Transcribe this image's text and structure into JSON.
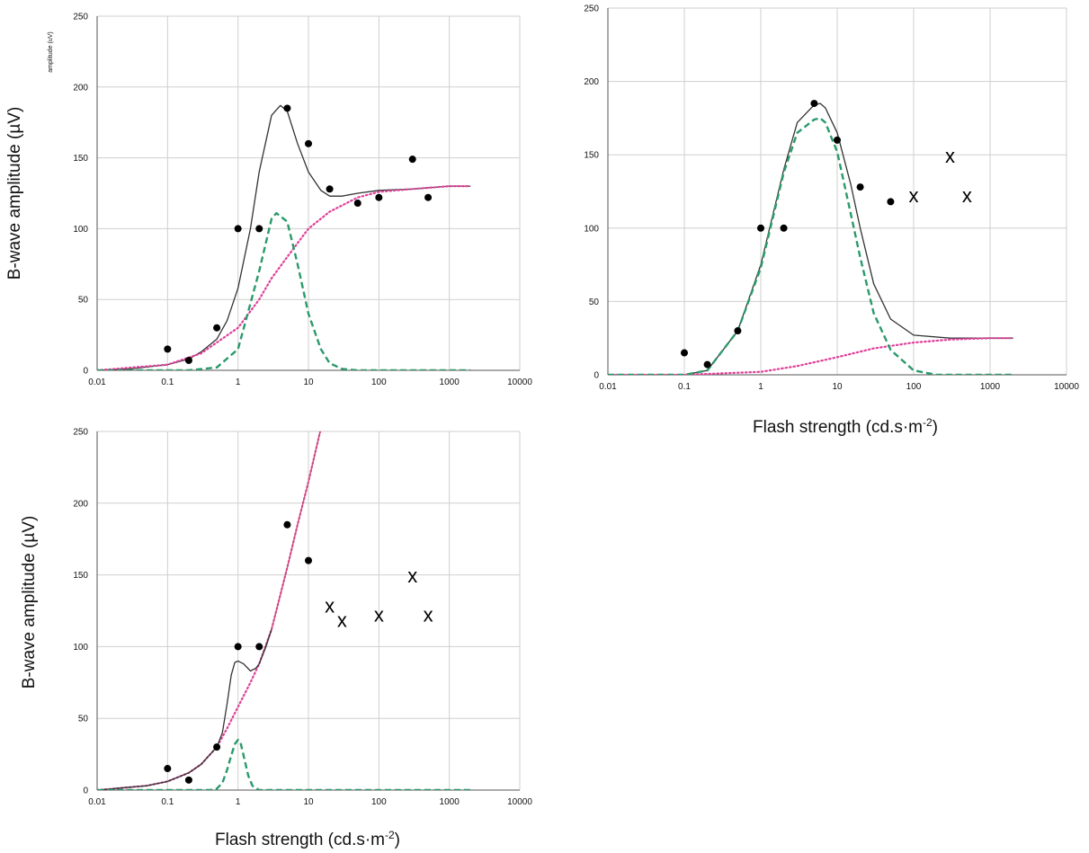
{
  "chart_data": [
    {
      "type": "scatter",
      "xscale": "log",
      "xlim": [
        0.01,
        10000
      ],
      "ylim": [
        0,
        250
      ],
      "x_ticks": [
        "0.01",
        "0.1",
        "1",
        "10",
        "100",
        "1000",
        "10000"
      ],
      "y_ticks": [
        "0",
        "50",
        "100",
        "150",
        "200",
        "250"
      ],
      "ylabel": "B-wave amplitude (µV)",
      "ylabel_small": "amplitude (uV)",
      "xlabel": "",
      "grid": true,
      "points": [
        {
          "x": 0.1,
          "y": 15
        },
        {
          "x": 0.2,
          "y": 7
        },
        {
          "x": 0.5,
          "y": 30
        },
        {
          "x": 1,
          "y": 100
        },
        {
          "x": 2,
          "y": 100
        },
        {
          "x": 5,
          "y": 185
        },
        {
          "x": 10,
          "y": 160
        },
        {
          "x": 20,
          "y": 128
        },
        {
          "x": 50,
          "y": 118
        },
        {
          "x": 100,
          "y": 122
        },
        {
          "x": 300,
          "y": 149
        },
        {
          "x": 500,
          "y": 122
        }
      ],
      "x_markers": [],
      "curves": [
        {
          "style": "solid",
          "color": "#333333",
          "x": [
            0.01,
            0.03,
            0.1,
            0.2,
            0.3,
            0.5,
            0.7,
            1,
            1.5,
            2,
            3,
            4,
            5,
            7,
            10,
            15,
            20,
            30,
            50,
            100,
            300,
            1000,
            2000
          ],
          "y": [
            0,
            1,
            4,
            8,
            13,
            22,
            35,
            58,
            100,
            140,
            180,
            187,
            183,
            160,
            140,
            127,
            123,
            123,
            125,
            127,
            128,
            130,
            130
          ]
        },
        {
          "style": "dotted",
          "color": "#e0409a",
          "x": [
            0.01,
            0.1,
            0.3,
            1,
            2,
            3,
            5,
            10,
            20,
            50,
            100,
            300,
            1000,
            2000
          ],
          "y": [
            0,
            4,
            12,
            30,
            50,
            65,
            80,
            100,
            112,
            122,
            126,
            128,
            130,
            130
          ]
        },
        {
          "style": "dashed",
          "color": "#2a9a6a",
          "x": [
            0.01,
            0.2,
            0.5,
            1,
            2,
            3,
            3.5,
            5,
            7,
            10,
            15,
            20,
            30,
            50,
            100,
            2000
          ],
          "y": [
            0,
            0,
            2,
            15,
            70,
            107,
            111,
            105,
            75,
            40,
            15,
            5,
            1,
            0,
            0,
            0
          ]
        }
      ]
    },
    {
      "type": "scatter",
      "xscale": "log",
      "xlim": [
        0.01,
        10000
      ],
      "ylim": [
        0,
        250
      ],
      "x_ticks": [
        "0.01",
        "0.1",
        "1",
        "10",
        "100",
        "1000",
        "10000"
      ],
      "y_ticks": [
        "0",
        "50",
        "100",
        "150",
        "200",
        "250"
      ],
      "ylabel": "",
      "xlabel_main": "Flash strength (cd.s·m",
      "xlabel_sup": "-2",
      "xlabel_end": ")",
      "grid": true,
      "points": [
        {
          "x": 0.1,
          "y": 15
        },
        {
          "x": 0.2,
          "y": 7
        },
        {
          "x": 0.5,
          "y": 30
        },
        {
          "x": 1,
          "y": 100
        },
        {
          "x": 2,
          "y": 100
        },
        {
          "x": 5,
          "y": 185
        },
        {
          "x": 10,
          "y": 160
        },
        {
          "x": 20,
          "y": 128
        },
        {
          "x": 50,
          "y": 118
        }
      ],
      "x_markers": [
        {
          "x": 100,
          "y": 122,
          "label": "x"
        },
        {
          "x": 300,
          "y": 149,
          "label": "x"
        },
        {
          "x": 500,
          "y": 122,
          "label": "x"
        }
      ],
      "curves": [
        {
          "style": "solid",
          "color": "#333333",
          "x": [
            0.01,
            0.1,
            0.2,
            0.5,
            1,
            2,
            3,
            5,
            6,
            7,
            10,
            15,
            20,
            30,
            50,
            100,
            300,
            1000,
            2000
          ],
          "y": [
            0,
            0,
            3,
            30,
            75,
            140,
            172,
            184,
            185,
            182,
            165,
            130,
            100,
            62,
            38,
            27,
            25,
            25,
            25
          ]
        },
        {
          "style": "dotted",
          "color": "#e0409a",
          "x": [
            0.01,
            0.1,
            1,
            3,
            10,
            30,
            100,
            300,
            1000,
            2000
          ],
          "y": [
            0,
            0,
            2,
            6,
            12,
            18,
            22,
            24,
            25,
            25
          ]
        },
        {
          "style": "dashed",
          "color": "#2a9a6a",
          "x": [
            0.01,
            0.1,
            0.2,
            0.5,
            1,
            2,
            3,
            5,
            6,
            7,
            10,
            15,
            20,
            30,
            50,
            100,
            200,
            500,
            2000
          ],
          "y": [
            0,
            0,
            3,
            30,
            73,
            138,
            165,
            174,
            175,
            172,
            152,
            110,
            80,
            42,
            17,
            3,
            0,
            0,
            0
          ]
        }
      ]
    },
    {
      "type": "scatter",
      "xscale": "log",
      "xlim": [
        0.01,
        10000
      ],
      "ylim": [
        0,
        250
      ],
      "x_ticks": [
        "0.01",
        "0.1",
        "1",
        "10",
        "100",
        "1000",
        "10000"
      ],
      "y_ticks": [
        "0",
        "50",
        "100",
        "150",
        "200",
        "250"
      ],
      "ylabel": "B-wave amplitude (µV)",
      "xlabel_main": "Flash strength (cd.s·m",
      "xlabel_sup": "-2",
      "xlabel_end": ")",
      "grid": true,
      "points": [
        {
          "x": 0.1,
          "y": 15
        },
        {
          "x": 0.2,
          "y": 7
        },
        {
          "x": 0.5,
          "y": 30
        },
        {
          "x": 1,
          "y": 100
        },
        {
          "x": 2,
          "y": 100
        },
        {
          "x": 5,
          "y": 185
        },
        {
          "x": 10,
          "y": 160
        }
      ],
      "x_markers": [
        {
          "x": 20,
          "y": 128,
          "label": "x"
        },
        {
          "x": 30,
          "y": 118,
          "label": "x"
        },
        {
          "x": 100,
          "y": 122,
          "label": "x"
        },
        {
          "x": 300,
          "y": 149,
          "label": "x"
        },
        {
          "x": 500,
          "y": 122,
          "label": "x"
        }
      ],
      "curves": [
        {
          "style": "dotted",
          "color": "#e0409a",
          "x": [
            0.01,
            0.05,
            0.1,
            0.2,
            0.3,
            0.5,
            0.7,
            1,
            1.5,
            2,
            3,
            5,
            7,
            10,
            15
          ],
          "y": [
            0,
            3,
            6,
            12,
            18,
            30,
            43,
            58,
            75,
            88,
            112,
            155,
            185,
            215,
            252
          ]
        },
        {
          "style": "solid",
          "color": "#c85080",
          "x": [
            2,
            3,
            5,
            7,
            10,
            15
          ],
          "y": [
            88,
            112,
            155,
            185,
            215,
            252
          ]
        },
        {
          "style": "solid",
          "color": "#333333",
          "x": [
            0.01,
            0.05,
            0.1,
            0.2,
            0.3,
            0.5,
            0.6,
            0.7,
            0.8,
            0.9,
            1,
            1.2,
            1.5,
            1.8,
            2,
            2.5,
            3
          ],
          "y": [
            0,
            3,
            6,
            12,
            18,
            30,
            40,
            60,
            80,
            89,
            90,
            88,
            83,
            85,
            88,
            100,
            112
          ]
        },
        {
          "style": "dashed",
          "color": "#2a9a6a",
          "x": [
            0.01,
            0.4,
            0.5,
            0.6,
            0.7,
            0.8,
            0.9,
            1,
            1.1,
            1.2,
            1.4,
            1.6,
            2,
            3,
            2000
          ],
          "y": [
            0,
            0,
            1,
            5,
            14,
            24,
            32,
            35,
            32,
            24,
            10,
            3,
            0,
            0,
            0
          ]
        }
      ]
    }
  ]
}
